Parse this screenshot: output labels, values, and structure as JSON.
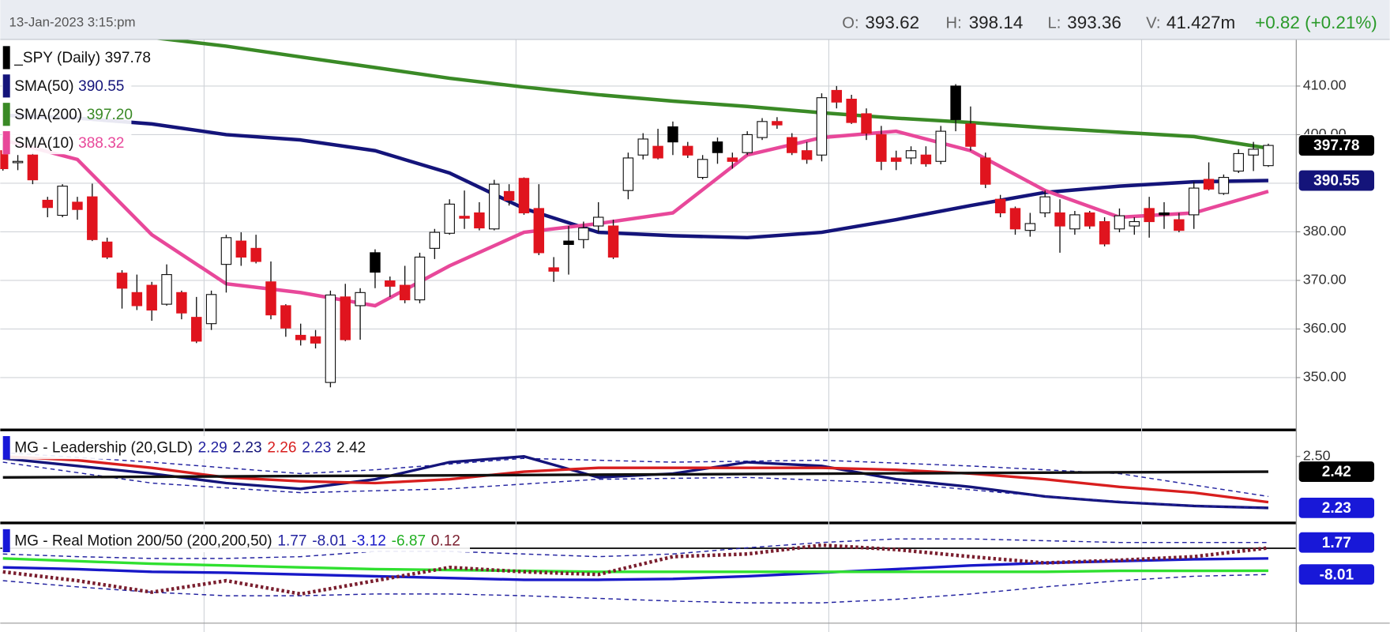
{
  "header": {
    "date": "13-Jan-2023 3:15:pm",
    "open_label": "O:",
    "high_label": "H:",
    "low_label": "L:",
    "volume_label": "V:",
    "volume": "41.427m",
    "change": "+0.82 (+0.21%)"
  },
  "chart_data": [
    {
      "type": "candlestick",
      "name": "_SPY (Daily)",
      "up_color": "#ffffff",
      "down_color": "#e0141e",
      "hold_color": "#000000",
      "open": [
        396.7,
        394.3,
        395.8,
        386.5,
        383.4,
        386.1,
        387.2,
        377.9,
        371.5,
        367.5,
        369.0,
        365.1,
        367.5,
        362.4,
        361.1,
        373.3,
        378.1,
        376.6,
        369.7,
        364.8,
        358.7,
        358.4,
        349.0,
        366.6,
        364.8,
        375.7,
        369.9,
        369.0,
        366.0,
        376.6,
        379.7,
        383.2,
        383.9,
        380.6,
        388.3,
        391.0,
        384.8,
        372.6,
        378.1,
        378.4,
        381.2,
        381.2,
        388.5,
        395.8,
        397.6,
        401.6,
        397.6,
        391.2,
        398.5,
        395.2,
        396.3,
        399.4,
        402.7,
        399.4,
        396.7,
        395.8,
        409.1,
        407.3,
        404.3,
        400.0,
        395.2,
        395.2,
        395.8,
        394.5,
        410.0,
        402.2,
        395.2,
        386.7,
        384.8,
        380.3,
        383.9,
        383.9,
        380.6,
        383.9,
        382.1,
        380.6,
        381.2,
        384.8,
        383.9,
        382.5,
        383.5,
        390.8,
        387.9,
        392.5,
        395.8,
        393.62
      ],
      "high": [
        399.5,
        395.8,
        396.3,
        387.2,
        389.8,
        387.2,
        389.9,
        378.8,
        372.1,
        371.2,
        369.7,
        373.3,
        367.9,
        366.6,
        367.9,
        379.4,
        379.9,
        379.4,
        373.9,
        365.1,
        361.1,
        359.8,
        367.9,
        369.3,
        368.4,
        376.4,
        370.8,
        373.0,
        375.7,
        380.6,
        386.7,
        388.5,
        386.1,
        390.7,
        389.8,
        391.2,
        389.8,
        374.8,
        381.2,
        382.1,
        386.1,
        382.5,
        396.3,
        400.3,
        401.2,
        402.7,
        398.5,
        395.8,
        399.4,
        396.3,
        400.7,
        403.4,
        403.6,
        400.3,
        398.5,
        408.5,
        410.0,
        408.2,
        405.4,
        401.8,
        396.7,
        397.6,
        397.6,
        401.8,
        410.4,
        405.8,
        396.3,
        387.6,
        385.2,
        383.9,
        388.5,
        386.7,
        384.3,
        384.3,
        383.0,
        384.8,
        383.0,
        387.2,
        386.1,
        383.9,
        390.3,
        394.3,
        391.8,
        397.0,
        398.5,
        398.14
      ],
      "low": [
        392.6,
        392.7,
        389.8,
        383.0,
        383.0,
        382.5,
        378.1,
        374.4,
        364.2,
        363.9,
        361.7,
        364.8,
        362.0,
        357.1,
        359.8,
        367.5,
        373.0,
        373.5,
        362.0,
        358.4,
        356.6,
        356.0,
        348.0,
        357.5,
        357.8,
        368.4,
        366.6,
        365.3,
        365.3,
        374.4,
        379.4,
        380.6,
        380.3,
        380.3,
        385.4,
        383.5,
        375.2,
        369.7,
        371.2,
        376.6,
        379.9,
        374.4,
        386.7,
        394.9,
        394.9,
        395.8,
        395.2,
        390.8,
        394.0,
        393.0,
        395.8,
        398.9,
        401.2,
        395.8,
        394.0,
        394.5,
        405.4,
        402.2,
        398.9,
        392.7,
        392.7,
        393.9,
        393.4,
        393.9,
        400.7,
        396.7,
        389.0,
        383.0,
        379.4,
        379.0,
        383.0,
        375.7,
        379.4,
        380.6,
        377.0,
        379.9,
        379.4,
        378.8,
        380.6,
        379.9,
        380.6,
        388.5,
        387.6,
        392.1,
        392.5,
        393.36
      ],
      "close": [
        393.0,
        394.5,
        390.7,
        385.0,
        389.4,
        384.6,
        378.4,
        374.8,
        368.4,
        364.8,
        363.9,
        371.2,
        363.3,
        357.5,
        367.1,
        378.8,
        374.8,
        373.9,
        362.9,
        360.2,
        357.8,
        357.1,
        367.0,
        357.8,
        367.5,
        371.7,
        368.8,
        366.0,
        374.8,
        379.9,
        385.7,
        382.8,
        380.8,
        389.8,
        386.5,
        383.9,
        375.7,
        371.9,
        377.4,
        380.8,
        383.0,
        374.8,
        395.2,
        399.1,
        395.2,
        398.5,
        395.8,
        394.9,
        396.3,
        394.5,
        400.0,
        402.7,
        402.0,
        396.3,
        394.9,
        407.6,
        406.7,
        402.5,
        400.3,
        394.5,
        394.5,
        396.7,
        394.0,
        400.7,
        403.1,
        397.6,
        389.8,
        383.9,
        380.6,
        381.7,
        387.2,
        381.2,
        383.5,
        381.2,
        377.5,
        383.3,
        382.1,
        382.1,
        383.5,
        380.3,
        389.0,
        388.8,
        391.2,
        396.1,
        397.0,
        397.78
      ],
      "ylim": [
        339.6,
        419.5
      ],
      "yticks": [
        {
          "value": 350,
          "label": "350.00"
        },
        {
          "value": 360,
          "label": "360.00"
        },
        {
          "value": 370,
          "label": "370.00"
        },
        {
          "value": 380,
          "label": "380.00"
        },
        {
          "value": 390,
          "label": "390.00"
        },
        {
          "value": 400,
          "label": "400.00"
        },
        {
          "value": 410,
          "label": "410.00"
        }
      ],
      "grid": true,
      "series": [
        {
          "name": "SMA(50)",
          "color": "#14147a",
          "style": "solid",
          "x": [
            0,
            5,
            10,
            15,
            20,
            25,
            30,
            35,
            40,
            45,
            50,
            55,
            60,
            65,
            70,
            75,
            80,
            85
          ],
          "values": [
            404.0,
            403.4,
            402.2,
            400.0,
            398.9,
            396.7,
            392.1,
            384.8,
            379.9,
            379.2,
            378.8,
            379.9,
            382.5,
            385.4,
            388.1,
            389.4,
            390.3,
            390.55
          ]
        },
        {
          "name": "SMA(200)",
          "color": "#3a8a26",
          "style": "solid",
          "x": [
            10,
            15,
            20,
            25,
            30,
            35,
            40,
            45,
            50,
            55,
            60,
            65,
            70,
            75,
            80,
            85
          ],
          "values": [
            420.0,
            418.2,
            416.0,
            413.8,
            411.6,
            409.8,
            408.2,
            406.9,
            405.8,
            404.5,
            403.4,
            402.5,
            401.4,
            400.5,
            399.6,
            397.2
          ],
          "value_labels": [
            null,
            null,
            null,
            null,
            null,
            null,
            null,
            null,
            null,
            null,
            null,
            null,
            null,
            null,
            null,
            "397.20"
          ]
        },
        {
          "name": "SMA(10)",
          "color": "#e8489a",
          "style": "solid",
          "x": [
            0,
            5,
            10,
            15,
            20,
            25,
            30,
            35,
            40,
            45,
            50,
            55,
            60,
            65,
            70,
            75,
            80,
            85
          ],
          "values": [
            398.9,
            394.9,
            379.4,
            369.3,
            367.5,
            364.8,
            373.0,
            379.9,
            381.7,
            383.9,
            395.8,
            399.4,
            400.7,
            396.7,
            388.5,
            383.0,
            383.9,
            388.32
          ]
        }
      ]
    },
    {
      "type": "line",
      "title": "MG - Leadership (20,GLD)",
      "ylim": [
        2.16,
        2.63
      ],
      "yticks": [
        {
          "value": 2.5,
          "label": "2.50"
        }
      ],
      "series": [
        {
          "color": "#2323a0",
          "style": "dashed",
          "x": [
            0,
            10,
            20,
            25,
            35,
            45,
            55,
            65,
            75,
            85
          ],
          "values": [
            2.52,
            2.47,
            2.41,
            2.43,
            2.49,
            2.47,
            2.48,
            2.45,
            2.41,
            2.29
          ]
        },
        {
          "color": "#14147a",
          "style": "solid",
          "x": [
            0,
            5,
            10,
            15,
            20,
            25,
            30,
            35,
            40,
            45,
            50,
            55,
            60,
            65,
            70,
            75,
            80,
            85
          ],
          "values": [
            2.49,
            2.45,
            2.41,
            2.36,
            2.33,
            2.38,
            2.47,
            2.5,
            2.39,
            2.41,
            2.47,
            2.45,
            2.38,
            2.34,
            2.29,
            2.26,
            2.24,
            2.23
          ]
        },
        {
          "color": "#d81e1e",
          "style": "solid",
          "x": [
            0,
            5,
            10,
            15,
            20,
            25,
            30,
            35,
            40,
            45,
            50,
            55,
            60,
            65,
            70,
            75,
            80,
            85
          ],
          "values": [
            2.5,
            2.48,
            2.44,
            2.39,
            2.37,
            2.36,
            2.38,
            2.42,
            2.44,
            2.44,
            2.44,
            2.44,
            2.43,
            2.41,
            2.38,
            2.34,
            2.31,
            2.26
          ]
        },
        {
          "color": "#2323a0",
          "style": "dashed",
          "x": [
            0,
            10,
            20,
            30,
            40,
            50,
            60,
            70,
            80,
            85
          ],
          "values": [
            2.47,
            2.36,
            2.31,
            2.33,
            2.38,
            2.39,
            2.36,
            2.29,
            2.24,
            2.23
          ]
        },
        {
          "color": "#111111",
          "style": "solid",
          "x": [
            0,
            85
          ],
          "values": [
            2.39,
            2.42
          ]
        }
      ]
    },
    {
      "type": "line",
      "title": "MG - Real Motion 200/50 (200,200,50)",
      "ylim": [
        -22.1,
        7.2
      ],
      "series": [
        {
          "color": "#2323a0",
          "style": "dashed",
          "x": [
            0,
            5,
            10,
            15,
            20,
            25,
            30,
            35,
            40,
            45,
            50,
            55,
            60,
            65,
            70,
            75,
            80,
            85
          ],
          "values": [
            -1.76,
            -2.58,
            -3.12,
            -3.12,
            -2.58,
            -0.95,
            -0.95,
            -1.76,
            -2.58,
            -1.76,
            0.14,
            1.77,
            2.86,
            2.86,
            2.31,
            1.77,
            1.77,
            1.77
          ]
        },
        {
          "color": "#2323a0",
          "style": "dashed",
          "x": [
            0,
            5,
            10,
            15,
            20,
            25,
            30,
            35,
            40,
            45,
            50,
            55,
            60,
            65,
            70,
            75,
            80,
            85
          ],
          "values": [
            -9.91,
            -11.82,
            -13.45,
            -14.53,
            -14.53,
            -13.99,
            -13.99,
            -14.53,
            -15.35,
            -16.16,
            -16.71,
            -16.71,
            -15.62,
            -13.99,
            -11.82,
            -9.91,
            -8.55,
            -8.01
          ]
        },
        {
          "color": "#1818c8",
          "style": "solid",
          "x": [
            0,
            5,
            10,
            15,
            20,
            25,
            30,
            35,
            40,
            45,
            50,
            55,
            60,
            65,
            70,
            75,
            80,
            85
          ],
          "values": [
            -5.84,
            -6.38,
            -7.2,
            -7.47,
            -8.01,
            -8.55,
            -9.1,
            -9.64,
            -9.64,
            -9.37,
            -8.55,
            -7.47,
            -6.38,
            -5.29,
            -4.48,
            -3.94,
            -3.39,
            -3.12
          ]
        },
        {
          "color": "#30e030",
          "style": "solid",
          "x": [
            0,
            5,
            10,
            15,
            20,
            25,
            30,
            35,
            40,
            45,
            50,
            55,
            60,
            65,
            70,
            75,
            80,
            85
          ],
          "values": [
            -3.12,
            -3.94,
            -4.75,
            -5.29,
            -5.84,
            -6.38,
            -6.65,
            -6.92,
            -7.2,
            -7.2,
            -7.2,
            -7.2,
            -7.2,
            -7.2,
            -7.2,
            -6.92,
            -6.92,
            -6.87
          ]
        },
        {
          "color": "#7a1e2e",
          "style": "dotted",
          "x": [
            0,
            5,
            10,
            15,
            20,
            25,
            30,
            35,
            40,
            45,
            50,
            55,
            60,
            65,
            70,
            75,
            80,
            85
          ],
          "values": [
            -7.2,
            -9.91,
            -13.45,
            -9.91,
            -13.99,
            -9.91,
            -5.84,
            -7.2,
            -8.01,
            -2.58,
            -1.76,
            0.96,
            -0.4,
            -2.58,
            -4.48,
            -3.66,
            -2.58,
            0.12
          ]
        }
      ]
    }
  ]
}
